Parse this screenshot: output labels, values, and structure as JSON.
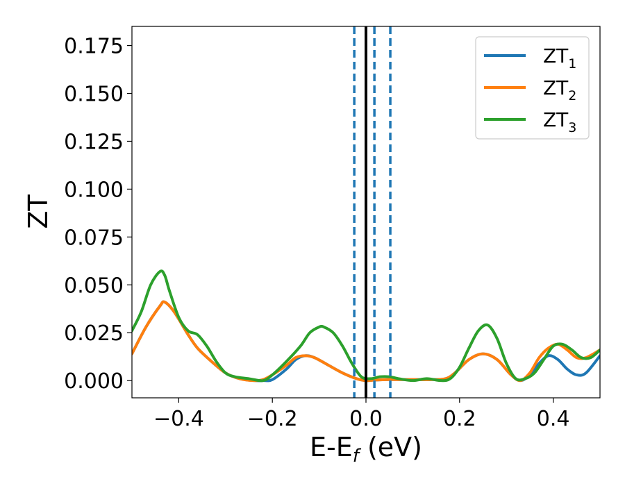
{
  "chart_data": {
    "type": "line",
    "xlabel": {
      "main": "E-E",
      "sub": "f",
      "suffix": " (eV)"
    },
    "ylabel": "ZT",
    "xlim": [
      -0.5,
      0.5
    ],
    "ylim": [
      -0.009,
      0.185
    ],
    "xticks": [
      -0.4,
      -0.2,
      0.0,
      0.2,
      0.4
    ],
    "xtick_labels": [
      "−0.4",
      "−0.2",
      "0.0",
      "0.2",
      "0.4"
    ],
    "yticks": [
      0.0,
      0.025,
      0.05,
      0.075,
      0.1,
      0.125,
      0.15,
      0.175
    ],
    "ytick_labels": [
      "0.000",
      "0.025",
      "0.050",
      "0.075",
      "0.100",
      "0.125",
      "0.150",
      "0.175"
    ],
    "grid": false,
    "legend_position": "top-right",
    "vertical_lines": [
      {
        "x": 0.0,
        "style": "solid",
        "color": "#000000"
      },
      {
        "x": -0.025,
        "style": "dashed",
        "color": "#1f77b4"
      },
      {
        "x": 0.018,
        "style": "dashed",
        "color": "#1f77b4"
      },
      {
        "x": 0.052,
        "style": "dashed",
        "color": "#1f77b4"
      }
    ],
    "series": [
      {
        "name": "ZT",
        "sub": "1",
        "color": "#1f77b4",
        "x": [
          -0.5,
          -0.47,
          -0.44,
          -0.43,
          -0.41,
          -0.38,
          -0.36,
          -0.33,
          -0.3,
          -0.27,
          -0.24,
          -0.22,
          -0.2,
          -0.17,
          -0.15,
          -0.13,
          -0.11,
          -0.08,
          -0.05,
          -0.02,
          0.0,
          0.02,
          0.05,
          0.08,
          0.11,
          0.14,
          0.17,
          0.19,
          0.22,
          0.25,
          0.28,
          0.31,
          0.33,
          0.35,
          0.37,
          0.39,
          0.41,
          0.43,
          0.45,
          0.47,
          0.5
        ],
        "y": [
          0.014,
          0.028,
          0.039,
          0.041,
          0.036,
          0.024,
          0.017,
          0.01,
          0.004,
          0.001,
          0.0,
          0.0,
          0.0005,
          0.006,
          0.011,
          0.013,
          0.012,
          0.008,
          0.004,
          0.001,
          0.0,
          0.0003,
          0.0005,
          0.0005,
          0.0005,
          0.0005,
          0.001,
          0.004,
          0.011,
          0.014,
          0.011,
          0.003,
          0.0,
          0.003,
          0.009,
          0.013,
          0.011,
          0.006,
          0.003,
          0.004,
          0.013
        ]
      },
      {
        "name": "ZT",
        "sub": "2",
        "color": "#ff7f0e",
        "x": [
          -0.5,
          -0.47,
          -0.44,
          -0.43,
          -0.41,
          -0.38,
          -0.36,
          -0.33,
          -0.3,
          -0.27,
          -0.24,
          -0.22,
          -0.2,
          -0.17,
          -0.15,
          -0.13,
          -0.11,
          -0.08,
          -0.05,
          -0.02,
          0.0,
          0.02,
          0.05,
          0.08,
          0.11,
          0.14,
          0.17,
          0.19,
          0.22,
          0.25,
          0.28,
          0.31,
          0.33,
          0.35,
          0.37,
          0.39,
          0.41,
          0.43,
          0.45,
          0.47,
          0.5
        ],
        "y": [
          0.014,
          0.028,
          0.039,
          0.041,
          0.036,
          0.024,
          0.017,
          0.01,
          0.004,
          0.001,
          0.0,
          0.0005,
          0.003,
          0.008,
          0.012,
          0.013,
          0.012,
          0.008,
          0.004,
          0.001,
          0.0,
          0.0003,
          0.0005,
          0.0005,
          0.0005,
          0.0005,
          0.001,
          0.004,
          0.011,
          0.014,
          0.011,
          0.003,
          0.0,
          0.004,
          0.012,
          0.017,
          0.019,
          0.016,
          0.012,
          0.012,
          0.016
        ]
      },
      {
        "name": "ZT",
        "sub": "3",
        "color": "#2ca02c",
        "x": [
          -0.5,
          -0.48,
          -0.46,
          -0.44,
          -0.43,
          -0.42,
          -0.4,
          -0.38,
          -0.36,
          -0.34,
          -0.32,
          -0.3,
          -0.28,
          -0.25,
          -0.22,
          -0.2,
          -0.17,
          -0.14,
          -0.12,
          -0.1,
          -0.09,
          -0.07,
          -0.05,
          -0.03,
          -0.01,
          0.01,
          0.03,
          0.05,
          0.07,
          0.1,
          0.13,
          0.16,
          0.18,
          0.2,
          0.22,
          0.24,
          0.26,
          0.28,
          0.3,
          0.32,
          0.34,
          0.36,
          0.38,
          0.4,
          0.42,
          0.44,
          0.46,
          0.48,
          0.5
        ],
        "y": [
          0.026,
          0.036,
          0.05,
          0.057,
          0.055,
          0.047,
          0.033,
          0.026,
          0.024,
          0.018,
          0.01,
          0.004,
          0.002,
          0.001,
          0.0,
          0.003,
          0.01,
          0.018,
          0.025,
          0.028,
          0.028,
          0.025,
          0.018,
          0.009,
          0.002,
          0.001,
          0.002,
          0.002,
          0.001,
          0.0,
          0.001,
          0.0,
          0.001,
          0.007,
          0.017,
          0.026,
          0.029,
          0.022,
          0.009,
          0.001,
          0.001,
          0.004,
          0.011,
          0.018,
          0.019,
          0.016,
          0.012,
          0.012,
          0.016
        ]
      }
    ]
  }
}
